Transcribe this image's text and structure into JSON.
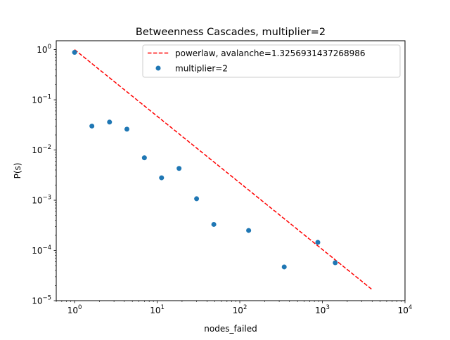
{
  "chart_data": {
    "type": "scatter",
    "title": "Betweenness Cascades, multiplier=2",
    "xlabel": "nodes_failed",
    "ylabel": "P(s)",
    "xscale": "log",
    "yscale": "log",
    "xlim": [
      0.6,
      10000
    ],
    "ylim": [
      1e-05,
      1.5
    ],
    "x_ticks": [
      {
        "value": 1,
        "base": "10",
        "exp": "0"
      },
      {
        "value": 10,
        "base": "10",
        "exp": "1"
      },
      {
        "value": 100,
        "base": "10",
        "exp": "2"
      },
      {
        "value": 1000,
        "base": "10",
        "exp": "3"
      },
      {
        "value": 10000,
        "base": "10",
        "exp": "4"
      }
    ],
    "y_ticks": [
      {
        "value": 1e-05,
        "base": "10",
        "exp": "−5"
      },
      {
        "value": 0.0001,
        "base": "10",
        "exp": "−4"
      },
      {
        "value": 0.001,
        "base": "10",
        "exp": "−3"
      },
      {
        "value": 0.01,
        "base": "10",
        "exp": "−2"
      },
      {
        "value": 0.1,
        "base": "10",
        "exp": "−1"
      },
      {
        "value": 1,
        "base": "10",
        "exp": "0"
      }
    ],
    "series": [
      {
        "name": "powerlaw, avalanche=1.3256931437268986",
        "kind": "line",
        "style": "dashed",
        "color": "#ff0000",
        "x": [
          1,
          4000
        ],
        "y": [
          1,
          1.66e-05
        ]
      },
      {
        "name": "multiplier=2",
        "kind": "scatter",
        "color": "#1f77b4",
        "x": [
          1,
          1.62,
          2.65,
          4.3,
          7.0,
          11.3,
          18.4,
          30,
          48.5,
          128,
          345,
          880,
          1430
        ],
        "y": [
          0.88,
          0.03,
          0.036,
          0.026,
          0.007,
          0.0028,
          0.0043,
          0.00107,
          0.00033,
          0.00025,
          4.7e-05,
          0.000145,
          5.7e-05
        ]
      }
    ],
    "legend": "upper right",
    "grid": false
  }
}
